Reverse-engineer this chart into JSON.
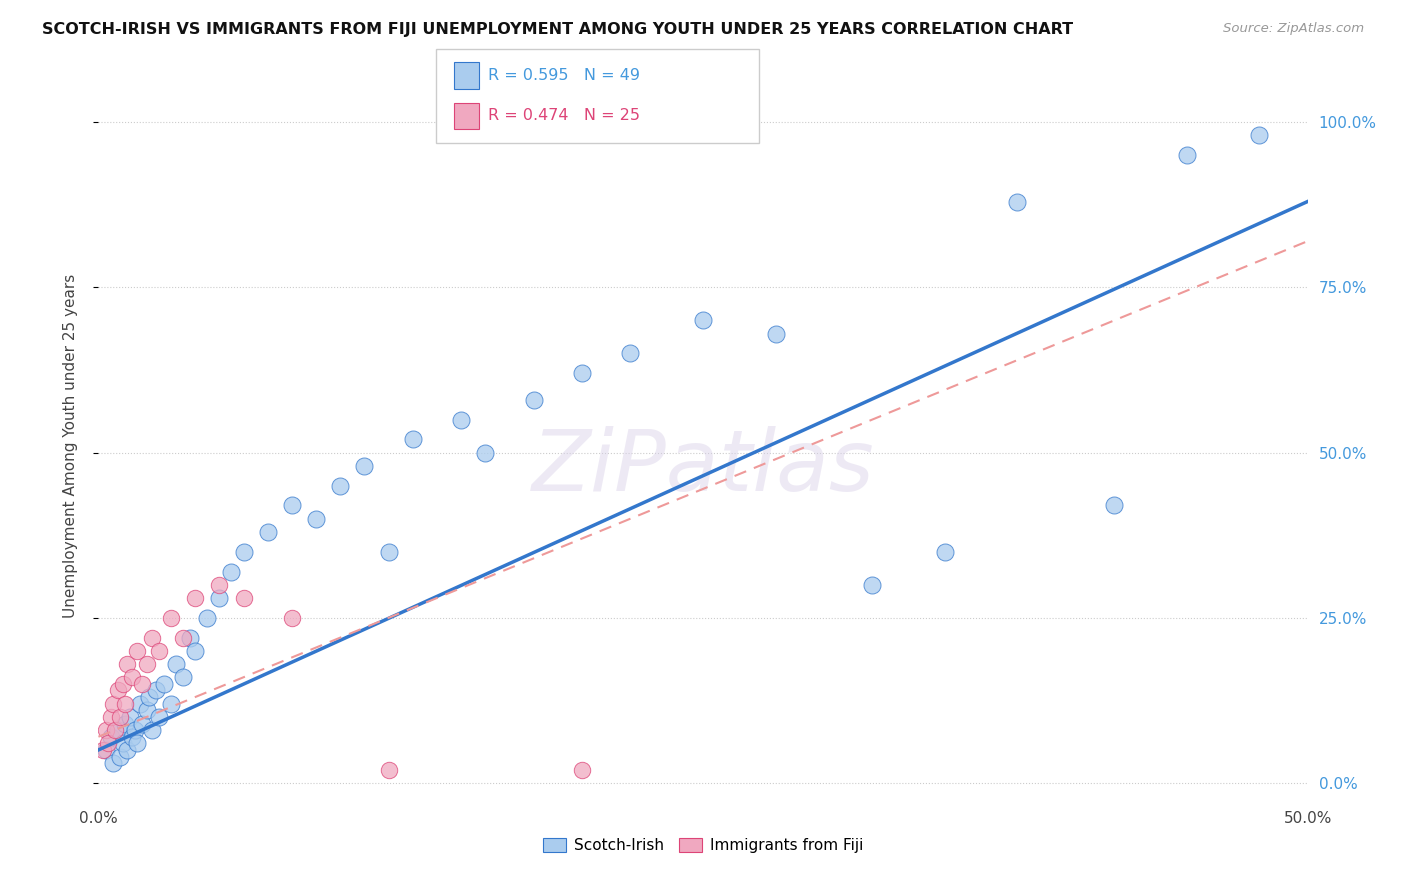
{
  "title": "SCOTCH-IRISH VS IMMIGRANTS FROM FIJI UNEMPLOYMENT AMONG YOUTH UNDER 25 YEARS CORRELATION CHART",
  "source": "Source: ZipAtlas.com",
  "ylabel": "Unemployment Among Youth under 25 years",
  "y_ticks": [
    "0.0%",
    "25.0%",
    "50.0%",
    "75.0%",
    "100.0%"
  ],
  "y_tick_vals": [
    0,
    25,
    50,
    75,
    100
  ],
  "x_lim": [
    0,
    50
  ],
  "y_lim": [
    -3,
    105
  ],
  "legend_label1": "Scotch-Irish",
  "legend_label2": "Immigrants from Fiji",
  "r1": 0.595,
  "n1": 49,
  "r2": 0.474,
  "n2": 25,
  "color_blue": "#aaccee",
  "color_pink": "#f0a8c0",
  "color_blue_text": "#4499dd",
  "color_pink_text": "#dd4477",
  "color_line_blue": "#3377cc",
  "color_line_pink": "#ee9999",
  "watermark": "ZiPatlas",
  "scotch_irish_x": [
    0.3,
    0.5,
    0.6,
    0.8,
    0.9,
    1.0,
    1.1,
    1.2,
    1.3,
    1.4,
    1.5,
    1.6,
    1.7,
    1.8,
    2.0,
    2.1,
    2.2,
    2.4,
    2.5,
    2.7,
    3.0,
    3.2,
    3.5,
    3.8,
    4.0,
    4.5,
    5.0,
    5.5,
    6.0,
    7.0,
    8.0,
    9.0,
    10.0,
    11.0,
    12.0,
    13.0,
    15.0,
    16.0,
    18.0,
    20.0,
    22.0,
    25.0,
    28.0,
    32.0,
    35.0,
    38.0,
    42.0,
    45.0,
    48.0
  ],
  "scotch_irish_y": [
    5,
    7,
    3,
    8,
    4,
    6,
    9,
    5,
    10,
    7,
    8,
    6,
    12,
    9,
    11,
    13,
    8,
    14,
    10,
    15,
    12,
    18,
    16,
    22,
    20,
    25,
    28,
    32,
    35,
    38,
    42,
    40,
    45,
    48,
    35,
    52,
    55,
    50,
    58,
    62,
    65,
    70,
    68,
    30,
    35,
    88,
    42,
    95,
    98
  ],
  "fiji_x": [
    0.2,
    0.3,
    0.4,
    0.5,
    0.6,
    0.7,
    0.8,
    0.9,
    1.0,
    1.1,
    1.2,
    1.4,
    1.6,
    1.8,
    2.0,
    2.2,
    2.5,
    3.0,
    3.5,
    4.0,
    5.0,
    6.0,
    8.0,
    12.0,
    20.0
  ],
  "fiji_y": [
    5,
    8,
    6,
    10,
    12,
    8,
    14,
    10,
    15,
    12,
    18,
    16,
    20,
    15,
    18,
    22,
    20,
    25,
    22,
    28,
    30,
    28,
    25,
    2,
    2
  ]
}
